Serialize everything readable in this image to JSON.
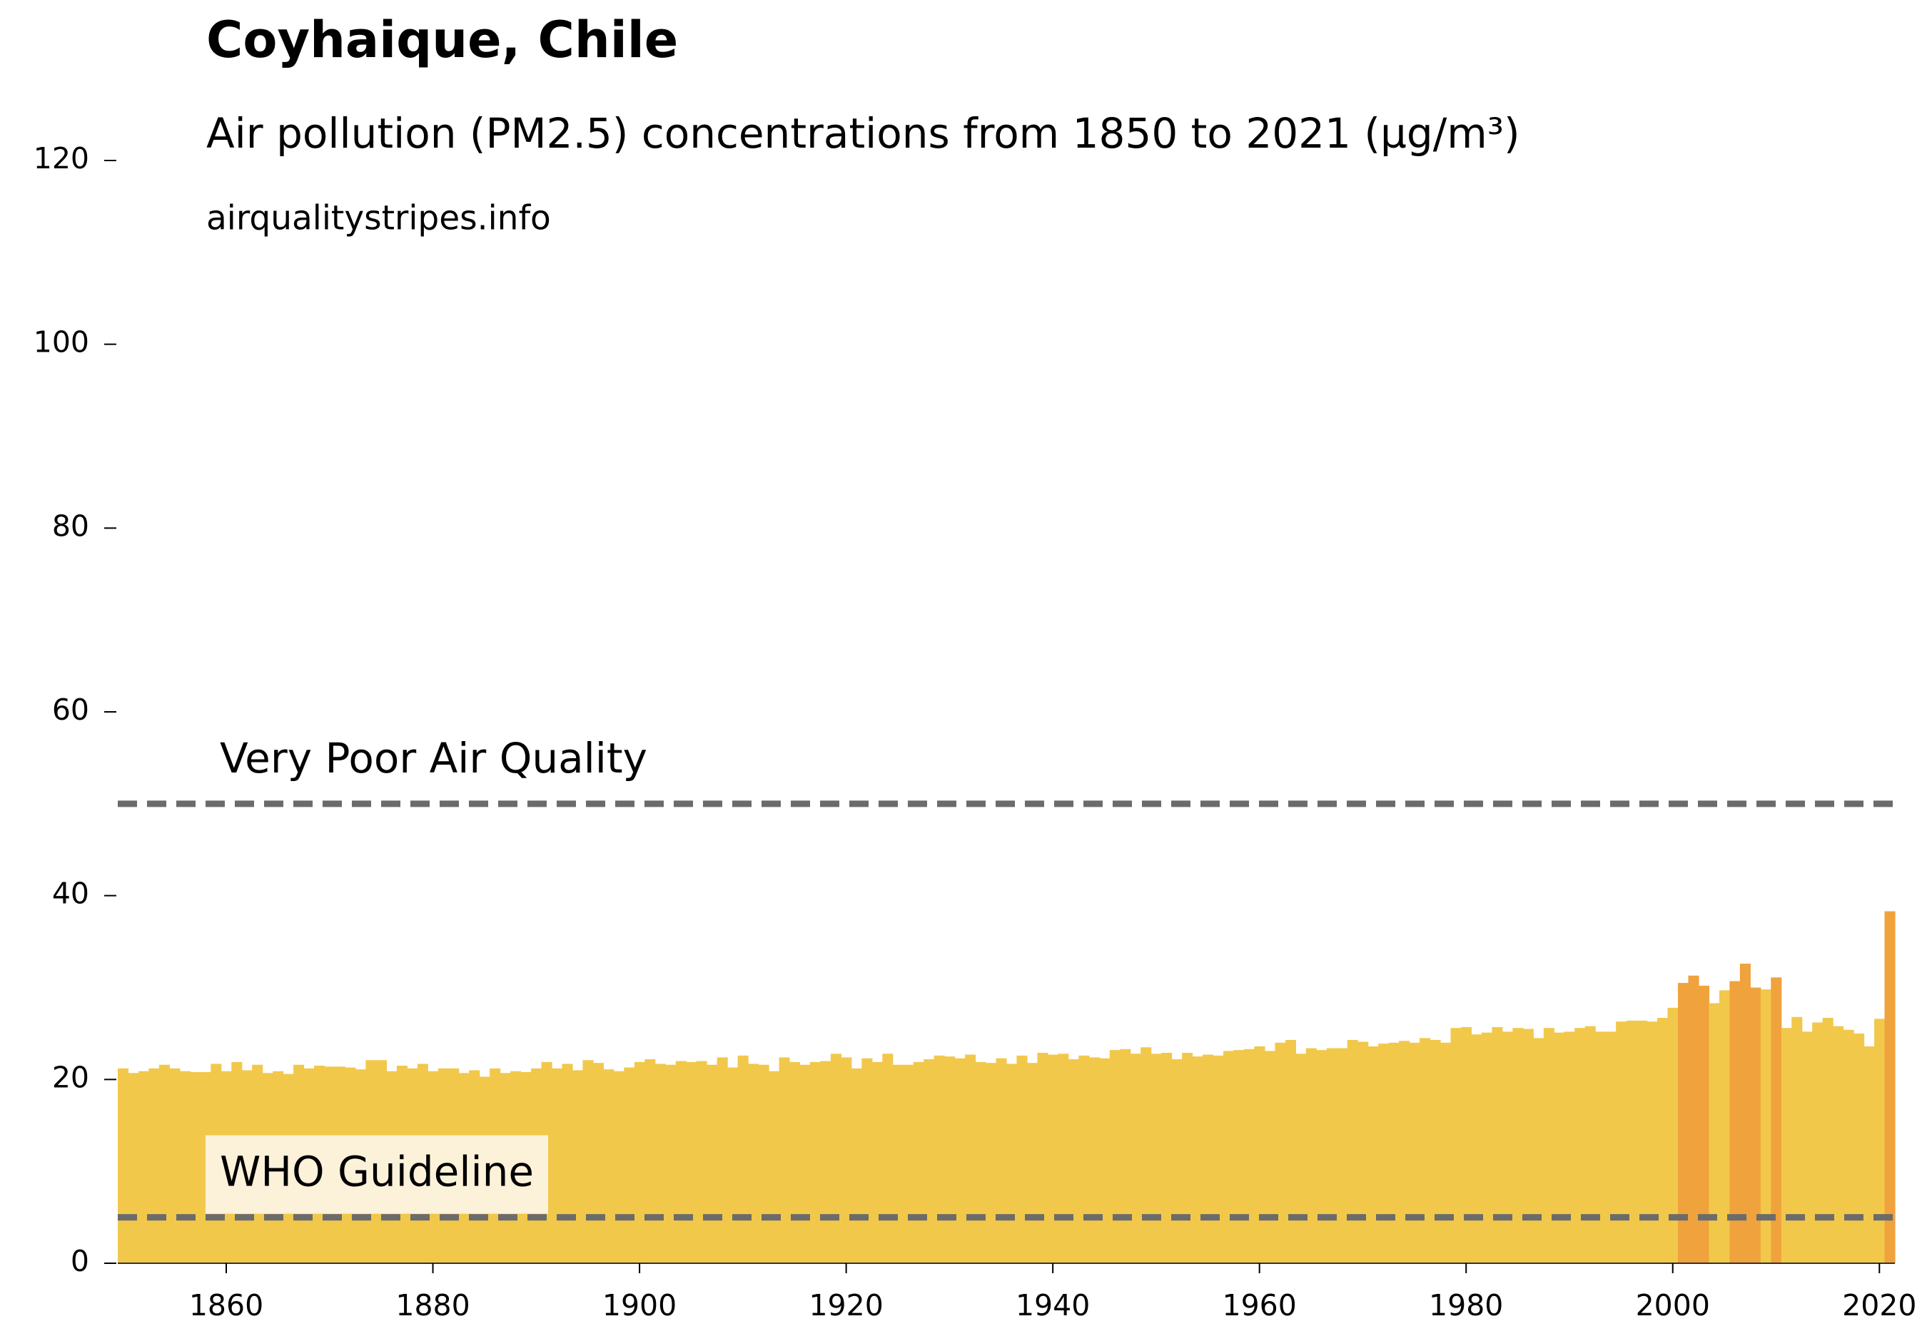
{
  "chart_data": {
    "type": "bar",
    "title": "Coyhaique, Chile",
    "subtitle": "Air pollution (PM2.5) concentrations from 1850 to 2021 (µg/m³)",
    "source": "airqualitystripes.info",
    "x": [
      1850,
      1851,
      1852,
      1853,
      1854,
      1855,
      1856,
      1857,
      1858,
      1859,
      1860,
      1861,
      1862,
      1863,
      1864,
      1865,
      1866,
      1867,
      1868,
      1869,
      1870,
      1871,
      1872,
      1873,
      1874,
      1875,
      1876,
      1877,
      1878,
      1879,
      1880,
      1881,
      1882,
      1883,
      1884,
      1885,
      1886,
      1887,
      1888,
      1889,
      1890,
      1891,
      1892,
      1893,
      1894,
      1895,
      1896,
      1897,
      1898,
      1899,
      1900,
      1901,
      1902,
      1903,
      1904,
      1905,
      1906,
      1907,
      1908,
      1909,
      1910,
      1911,
      1912,
      1913,
      1914,
      1915,
      1916,
      1917,
      1918,
      1919,
      1920,
      1921,
      1922,
      1923,
      1924,
      1925,
      1926,
      1927,
      1928,
      1929,
      1930,
      1931,
      1932,
      1933,
      1934,
      1935,
      1936,
      1937,
      1938,
      1939,
      1940,
      1941,
      1942,
      1943,
      1944,
      1945,
      1946,
      1947,
      1948,
      1949,
      1950,
      1951,
      1952,
      1953,
      1954,
      1955,
      1956,
      1957,
      1958,
      1959,
      1960,
      1961,
      1962,
      1963,
      1964,
      1965,
      1966,
      1967,
      1968,
      1969,
      1970,
      1971,
      1972,
      1973,
      1974,
      1975,
      1976,
      1977,
      1978,
      1979,
      1980,
      1981,
      1982,
      1983,
      1984,
      1985,
      1986,
      1987,
      1988,
      1989,
      1990,
      1991,
      1992,
      1993,
      1994,
      1995,
      1996,
      1997,
      1998,
      1999,
      2000,
      2001,
      2002,
      2003,
      2004,
      2005,
      2006,
      2007,
      2008,
      2009,
      2010,
      2011,
      2012,
      2013,
      2014,
      2015,
      2016,
      2017,
      2018,
      2019,
      2020,
      2021
    ],
    "values": [
      21.2,
      20.7,
      20.9,
      21.2,
      21.6,
      21.2,
      20.9,
      20.8,
      20.8,
      21.7,
      20.9,
      21.9,
      21.0,
      21.6,
      20.7,
      20.9,
      20.6,
      21.6,
      21.2,
      21.5,
      21.4,
      21.4,
      21.3,
      21.1,
      22.1,
      22.1,
      20.9,
      21.5,
      21.2,
      21.7,
      20.9,
      21.2,
      21.2,
      20.7,
      21.0,
      20.3,
      21.2,
      20.7,
      20.9,
      20.8,
      21.2,
      21.9,
      21.2,
      21.7,
      21.0,
      22.1,
      21.8,
      21.1,
      20.9,
      21.3,
      21.9,
      22.2,
      21.7,
      21.6,
      22.0,
      21.9,
      22.0,
      21.6,
      22.4,
      21.3,
      22.6,
      21.7,
      21.6,
      20.9,
      22.4,
      21.9,
      21.6,
      21.9,
      22.0,
      22.8,
      22.4,
      21.2,
      22.3,
      21.9,
      22.8,
      21.6,
      21.6,
      21.9,
      22.2,
      22.6,
      22.5,
      22.3,
      22.7,
      21.9,
      21.8,
      22.3,
      21.7,
      22.6,
      21.8,
      22.9,
      22.7,
      22.8,
      22.2,
      22.6,
      22.4,
      22.3,
      23.2,
      23.3,
      22.8,
      23.5,
      22.8,
      22.9,
      22.2,
      22.9,
      22.5,
      22.7,
      22.6,
      23.1,
      23.2,
      23.3,
      23.6,
      23.1,
      24.0,
      24.3,
      22.8,
      23.4,
      23.2,
      23.4,
      23.4,
      24.3,
      24.1,
      23.6,
      23.9,
      24.0,
      24.2,
      24.0,
      24.5,
      24.3,
      24.0,
      25.6,
      25.7,
      24.9,
      25.1,
      25.7,
      25.2,
      25.6,
      25.5,
      24.5,
      25.6,
      25.1,
      25.2,
      25.6,
      25.8,
      25.2,
      25.2,
      26.3,
      26.4,
      26.4,
      26.3,
      26.7,
      27.8,
      30.5,
      31.3,
      30.2,
      28.3,
      29.7,
      30.7,
      32.6,
      30.0,
      29.8,
      31.1,
      25.6,
      26.8,
      25.2,
      26.2,
      26.7,
      25.8,
      25.4,
      25.0,
      23.6,
      26.6,
      38.3
    ],
    "colors": [
      "#f2c84b",
      "#f2c84b",
      "#f2c84b",
      "#f2c84b",
      "#f2c84b",
      "#f2c84b",
      "#f2c84b",
      "#f2c84b",
      "#f2c84b",
      "#f2c84b",
      "#f2c84b",
      "#f2c84b",
      "#f2c84b",
      "#f2c84b",
      "#f2c84b",
      "#f2c84b",
      "#f2c84b",
      "#f2c84b",
      "#f2c84b",
      "#f2c84b",
      "#f2c84b",
      "#f2c84b",
      "#f2c84b",
      "#f2c84b",
      "#f2c84b",
      "#f2c84b",
      "#f2c84b",
      "#f2c84b",
      "#f2c84b",
      "#f2c84b",
      "#f2c84b",
      "#f2c84b",
      "#f2c84b",
      "#f2c84b",
      "#f2c84b",
      "#f2c84b",
      "#f2c84b",
      "#f2c84b",
      "#f2c84b",
      "#f2c84b",
      "#f2c84b",
      "#f2c84b",
      "#f2c84b",
      "#f2c84b",
      "#f2c84b",
      "#f2c84b",
      "#f2c84b",
      "#f2c84b",
      "#f2c84b",
      "#f2c84b",
      "#f2c84b",
      "#f2c84b",
      "#f2c84b",
      "#f2c84b",
      "#f2c84b",
      "#f2c84b",
      "#f2c84b",
      "#f2c84b",
      "#f2c84b",
      "#f2c84b",
      "#f2c84b",
      "#f2c84b",
      "#f2c84b",
      "#f2c84b",
      "#f2c84b",
      "#f2c84b",
      "#f2c84b",
      "#f2c84b",
      "#f2c84b",
      "#f2c84b",
      "#f2c84b",
      "#f2c84b",
      "#f2c84b",
      "#f2c84b",
      "#f2c84b",
      "#f2c84b",
      "#f2c84b",
      "#f2c84b",
      "#f2c84b",
      "#f2c84b",
      "#f2c84b",
      "#f2c84b",
      "#f2c84b",
      "#f2c84b",
      "#f2c84b",
      "#f2c84b",
      "#f2c84b",
      "#f2c84b",
      "#f2c84b",
      "#f2c84b",
      "#f2c84b",
      "#f2c84b",
      "#f2c84b",
      "#f2c84b",
      "#f2c84b",
      "#f2c84b",
      "#f2c84b",
      "#f2c84b",
      "#f2c84b",
      "#f2c84b",
      "#f2c84b",
      "#f2c84b",
      "#f2c84b",
      "#f2c84b",
      "#f2c84b",
      "#f2c84b",
      "#f2c84b",
      "#f2c84b",
      "#f2c84b",
      "#f2c84b",
      "#f2c84b",
      "#f2c84b",
      "#f2c84b",
      "#f2c84b",
      "#f2c84b",
      "#f2c84b",
      "#f2c84b",
      "#f2c84b",
      "#f2c84b",
      "#f2c84b",
      "#f2c84b",
      "#f2c84b",
      "#f2c84b",
      "#f2c84b",
      "#f2c84b",
      "#f2c84b",
      "#f2c84b",
      "#f2c84b",
      "#f2c84b",
      "#f2c84b",
      "#f2c84b",
      "#f2c84b",
      "#f2c84b",
      "#f2c84b",
      "#f2c84b",
      "#f2c84b",
      "#f2c84b",
      "#f2c84b",
      "#f2c84b",
      "#f2c84b",
      "#f2c84b",
      "#f2c84b",
      "#f2c84b",
      "#f2c84b",
      "#f2c84b",
      "#f2c84b",
      "#f2c84b",
      "#f2c84b",
      "#f2c84b",
      "#f2c84b",
      "#f2c84b",
      "#f0a23c",
      "#f0a23c",
      "#f0a23c",
      "#f2c84b",
      "#f2c84b",
      "#f0a23c",
      "#f0a23c",
      "#f0a23c",
      "#f2c84b",
      "#f0a23c",
      "#f2c84b",
      "#f2c84b",
      "#f2c84b",
      "#f2c84b",
      "#f2c84b",
      "#f2c84b",
      "#f2c84b",
      "#f2c84b",
      "#f2c84b",
      "#f2c84b",
      "#f0a23c"
    ],
    "reference_lines": [
      {
        "value": 50,
        "label": "Very Poor Air Quality"
      },
      {
        "value": 5,
        "label": "WHO Guideline"
      }
    ],
    "xlim": [
      1849.5,
      2021.5
    ],
    "ylim": [
      0,
      120
    ],
    "xticks": [
      1860,
      1880,
      1900,
      1920,
      1940,
      1960,
      1980,
      2000,
      2020
    ],
    "yticks": [
      0,
      20,
      40,
      60,
      80,
      100,
      120
    ]
  }
}
